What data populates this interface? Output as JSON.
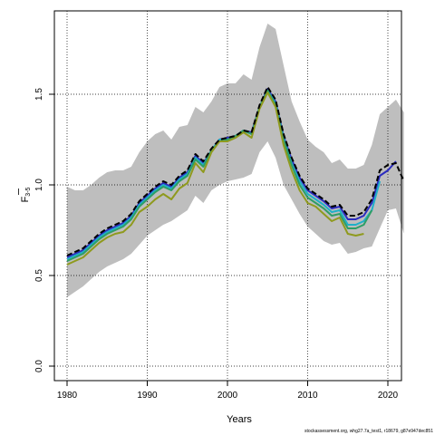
{
  "chart_data": {
    "type": "line",
    "xlabel": "Years",
    "ylabel_main": "F",
    "ylabel_sub": "3-5",
    "xlim": [
      1980,
      2022
    ],
    "ylim": [
      0.0,
      1.9
    ],
    "x_ticks": [
      1980,
      1990,
      2000,
      2010,
      2020
    ],
    "y_ticks": [
      0.0,
      0.5,
      1.0,
      1.5
    ],
    "y_tick_labels": [
      "0.0",
      "0.5",
      "1.0",
      "1.5"
    ],
    "grid": true,
    "footer": "stockassessment.org, whg27.7a_test1, r18679, g87e947dec851",
    "band": {
      "x": [
        1980,
        1981,
        1982,
        1983,
        1984,
        1985,
        1986,
        1987,
        1988,
        1989,
        1990,
        1991,
        1992,
        1993,
        1994,
        1995,
        1996,
        1997,
        1998,
        1999,
        2000,
        2001,
        2002,
        2003,
        2004,
        2005,
        2006,
        2007,
        2008,
        2009,
        2010,
        2011,
        2012,
        2013,
        2014,
        2015,
        2016,
        2017,
        2018,
        2019,
        2020,
        2021,
        2022
      ],
      "lower": [
        0.38,
        0.41,
        0.44,
        0.48,
        0.52,
        0.55,
        0.57,
        0.59,
        0.62,
        0.67,
        0.72,
        0.75,
        0.78,
        0.8,
        0.83,
        0.86,
        0.94,
        0.9,
        0.97,
        1.0,
        1.02,
        1.03,
        1.04,
        1.06,
        1.18,
        1.24,
        1.15,
        1.0,
        0.92,
        0.84,
        0.77,
        0.73,
        0.69,
        0.67,
        0.68,
        0.62,
        0.63,
        0.65,
        0.66,
        0.76,
        0.86,
        0.87,
        0.73
      ],
      "upper": [
        0.99,
        0.97,
        0.97,
        1.0,
        1.04,
        1.07,
        1.08,
        1.08,
        1.1,
        1.18,
        1.24,
        1.28,
        1.3,
        1.25,
        1.32,
        1.33,
        1.43,
        1.4,
        1.46,
        1.54,
        1.56,
        1.56,
        1.61,
        1.58,
        1.76,
        1.89,
        1.86,
        1.66,
        1.46,
        1.35,
        1.25,
        1.21,
        1.18,
        1.12,
        1.14,
        1.09,
        1.09,
        1.11,
        1.22,
        1.39,
        1.43,
        1.47,
        1.4
      ]
    },
    "series": [
      {
        "color": "#000000",
        "dashed": true,
        "x": [
          1980,
          1981,
          1982,
          1983,
          1984,
          1985,
          1986,
          1987,
          1988,
          1989,
          1990,
          1991,
          1992,
          1993,
          1994,
          1995,
          1996,
          1997,
          1998,
          1999,
          2000,
          2001,
          2002,
          2003,
          2004,
          2005,
          2006,
          2007,
          2008,
          2009,
          2010,
          2011,
          2012,
          2013,
          2014,
          2015,
          2016,
          2017,
          2018,
          2019,
          2020,
          2021,
          2022
        ],
        "y": [
          0.61,
          0.63,
          0.65,
          0.69,
          0.73,
          0.76,
          0.78,
          0.8,
          0.84,
          0.91,
          0.95,
          0.99,
          1.02,
          1.0,
          1.05,
          1.08,
          1.17,
          1.13,
          1.2,
          1.25,
          1.26,
          1.27,
          1.3,
          1.29,
          1.44,
          1.54,
          1.47,
          1.28,
          1.15,
          1.05,
          0.98,
          0.95,
          0.92,
          0.88,
          0.89,
          0.83,
          0.83,
          0.85,
          0.92,
          1.08,
          1.11,
          1.12,
          1.02
        ]
      },
      {
        "color": "#2b2bbf",
        "dashed": false,
        "x": [
          1980,
          1981,
          1982,
          1983,
          1984,
          1985,
          1986,
          1987,
          1988,
          1989,
          1990,
          1991,
          1992,
          1993,
          1994,
          1995,
          1996,
          1997,
          1998,
          1999,
          2000,
          2001,
          2002,
          2003,
          2004,
          2005,
          2006,
          2007,
          2008,
          2009,
          2010,
          2011,
          2012,
          2013,
          2014,
          2015,
          2016,
          2017,
          2018,
          2019,
          2020,
          2021
        ],
        "y": [
          0.6,
          0.62,
          0.64,
          0.68,
          0.72,
          0.75,
          0.77,
          0.79,
          0.83,
          0.9,
          0.94,
          0.98,
          1.01,
          0.99,
          1.04,
          1.07,
          1.16,
          1.12,
          1.19,
          1.25,
          1.26,
          1.27,
          1.3,
          1.29,
          1.43,
          1.53,
          1.46,
          1.27,
          1.14,
          1.04,
          0.97,
          0.94,
          0.91,
          0.87,
          0.88,
          0.81,
          0.81,
          0.83,
          0.9,
          1.05,
          1.08,
          1.13
        ]
      },
      {
        "color": "#1fb0c8",
        "dashed": false,
        "x": [
          1980,
          1981,
          1982,
          1983,
          1984,
          1985,
          1986,
          1987,
          1988,
          1989,
          1990,
          1991,
          1992,
          1993,
          1994,
          1995,
          1996,
          1997,
          1998,
          1999,
          2000,
          2001,
          2002,
          2003,
          2004,
          2005,
          2006,
          2007,
          2008,
          2009,
          2010,
          2011,
          2012,
          2013,
          2014,
          2015,
          2016,
          2017,
          2018,
          2019
        ],
        "y": [
          0.59,
          0.61,
          0.63,
          0.67,
          0.71,
          0.74,
          0.76,
          0.78,
          0.82,
          0.89,
          0.93,
          0.97,
          1.0,
          0.98,
          1.03,
          1.06,
          1.15,
          1.11,
          1.19,
          1.25,
          1.25,
          1.27,
          1.3,
          1.28,
          1.43,
          1.52,
          1.45,
          1.26,
          1.12,
          1.02,
          0.95,
          0.92,
          0.89,
          0.85,
          0.86,
          0.78,
          0.78,
          0.8,
          0.86,
          1.02
        ]
      },
      {
        "color": "#2e9e66",
        "dashed": false,
        "x": [
          1980,
          1981,
          1982,
          1983,
          1984,
          1985,
          1986,
          1987,
          1988,
          1989,
          1990,
          1991,
          1992,
          1993,
          1994,
          1995,
          1996,
          1997,
          1998,
          1999,
          2000,
          2001,
          2002,
          2003,
          2004,
          2005,
          2006,
          2007,
          2008,
          2009,
          2010,
          2011,
          2012,
          2013,
          2014,
          2015,
          2016,
          2017,
          2018
        ],
        "y": [
          0.58,
          0.6,
          0.62,
          0.66,
          0.7,
          0.73,
          0.75,
          0.77,
          0.81,
          0.88,
          0.92,
          0.96,
          0.99,
          0.97,
          1.02,
          1.05,
          1.14,
          1.1,
          1.19,
          1.24,
          1.25,
          1.27,
          1.3,
          1.28,
          1.43,
          1.52,
          1.44,
          1.25,
          1.11,
          1.0,
          0.93,
          0.9,
          0.87,
          0.83,
          0.84,
          0.76,
          0.76,
          0.78,
          0.86
        ]
      },
      {
        "color": "#8f9a1e",
        "dashed": false,
        "x": [
          1980,
          1981,
          1982,
          1983,
          1984,
          1985,
          1986,
          1987,
          1988,
          1989,
          1990,
          1991,
          1992,
          1993,
          1994,
          1995,
          1996,
          1997,
          1998,
          1999,
          2000,
          2001,
          2002,
          2003,
          2004,
          2005,
          2006,
          2007,
          2008,
          2009,
          2010,
          2011,
          2012,
          2013,
          2014,
          2015,
          2016,
          2017
        ],
        "y": [
          0.56,
          0.58,
          0.6,
          0.64,
          0.68,
          0.71,
          0.73,
          0.74,
          0.78,
          0.85,
          0.88,
          0.92,
          0.95,
          0.92,
          0.98,
          1.01,
          1.12,
          1.07,
          1.18,
          1.24,
          1.24,
          1.26,
          1.29,
          1.26,
          1.42,
          1.51,
          1.43,
          1.22,
          1.08,
          0.97,
          0.9,
          0.88,
          0.84,
          0.8,
          0.82,
          0.73,
          0.72,
          0.73
        ]
      }
    ]
  }
}
